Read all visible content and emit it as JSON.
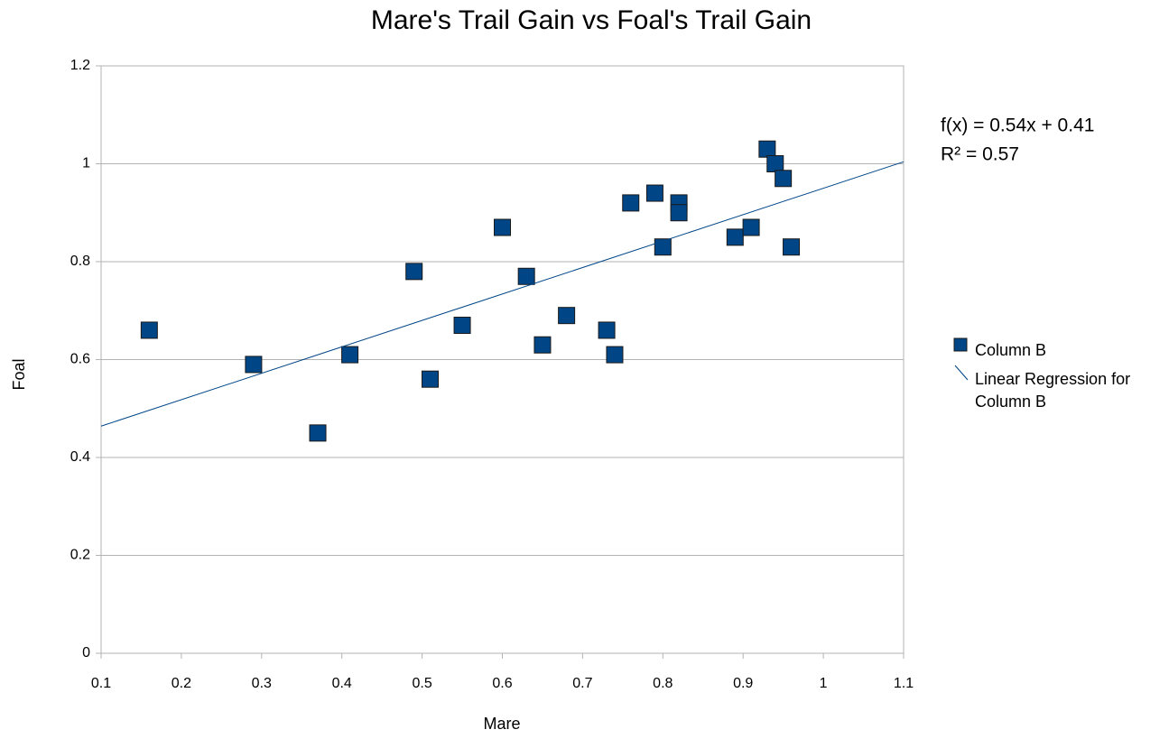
{
  "chart_data": {
    "type": "scatter",
    "title": "Mare's Trail Gain vs Foal's Trail Gain",
    "x_label": "Mare",
    "y_label": "Foal",
    "xlim": [
      0.1,
      1.1
    ],
    "xticks": [
      0.1,
      0.2,
      0.3,
      0.4,
      0.5,
      0.6,
      0.7,
      0.8,
      0.9,
      1,
      1.1
    ],
    "ylim": [
      0,
      1.2
    ],
    "yticks": [
      0,
      0.2,
      0.4,
      0.6,
      0.8,
      1,
      1.2
    ],
    "grid": true,
    "legend": "right",
    "series": [
      {
        "name": "Column B",
        "color": "#004586",
        "x": [
          0.16,
          0.29,
          0.37,
          0.41,
          0.49,
          0.51,
          0.55,
          0.6,
          0.63,
          0.65,
          0.68,
          0.73,
          0.74,
          0.76,
          0.79,
          0.8,
          0.82,
          0.82,
          0.89,
          0.91,
          0.93,
          0.94,
          0.95,
          0.96
        ],
        "values": [
          0.66,
          0.59,
          0.45,
          0.61,
          0.78,
          0.56,
          0.67,
          0.87,
          0.77,
          0.63,
          0.69,
          0.66,
          0.61,
          0.92,
          0.94,
          0.83,
          0.92,
          0.9,
          0.85,
          0.87,
          1.03,
          1.0,
          0.97,
          0.83
        ]
      }
    ],
    "trendline": {
      "name": "Linear Regression for Column B",
      "color": "#004586",
      "equation": "f(x) = 0.54x + 0.41",
      "r_squared": "R² = 0.57",
      "x": [
        0.1,
        1.1
      ],
      "values": [
        0.464,
        1.004
      ]
    }
  }
}
